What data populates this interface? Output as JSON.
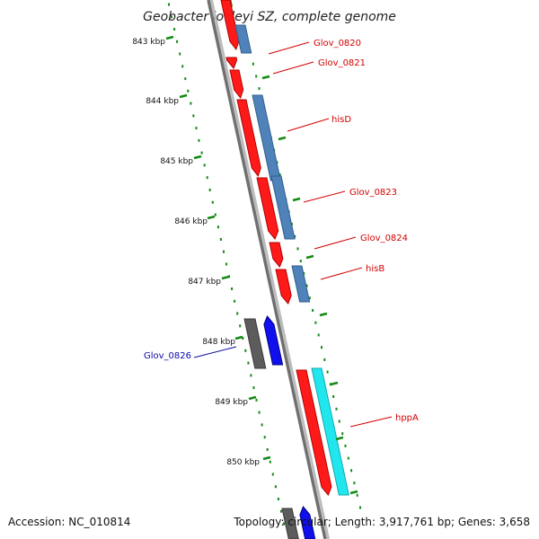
{
  "title": "Geobacter lovleyi SZ, complete genome",
  "footer": {
    "accession": "Accession: NC_010814",
    "info": "Topology: circular; Length: 3,917,761 bp; Genes: 3,658"
  },
  "colors": {
    "backbone_dark": "#707070",
    "backbone_light": "#bcbcbc",
    "tick": "#138a13",
    "plus_label": "#d40000",
    "minus_label": "#0a0aa8",
    "red_gene": "#ff1a1a",
    "red_gene_edge": "#b00000",
    "steel_feature": "#4f82b8",
    "cyan_feature": "#22e6ee",
    "blue_gene": "#1010ee",
    "grey_feature": "#5c5c5c",
    "olive_feature": "#7a9a2a"
  },
  "kbp_labels": [
    "843 kbp",
    "844 kbp",
    "845 kbp",
    "846 kbp",
    "847 kbp",
    "848 kbp",
    "849 kbp",
    "850 kbp"
  ],
  "genes": [
    {
      "name": "Glov_0820",
      "strand": "+",
      "color": "plus"
    },
    {
      "name": "Glov_0821",
      "strand": "+",
      "color": "plus"
    },
    {
      "name": "hisD",
      "strand": "+",
      "color": "plus"
    },
    {
      "name": "Glov_0823",
      "strand": "+",
      "color": "plus"
    },
    {
      "name": "Glov_0824",
      "strand": "+",
      "color": "plus"
    },
    {
      "name": "hisB",
      "strand": "+",
      "color": "plus"
    },
    {
      "name": "Glov_0826",
      "strand": "-",
      "color": "minus"
    },
    {
      "name": "hppA",
      "strand": "+",
      "color": "plus"
    }
  ]
}
